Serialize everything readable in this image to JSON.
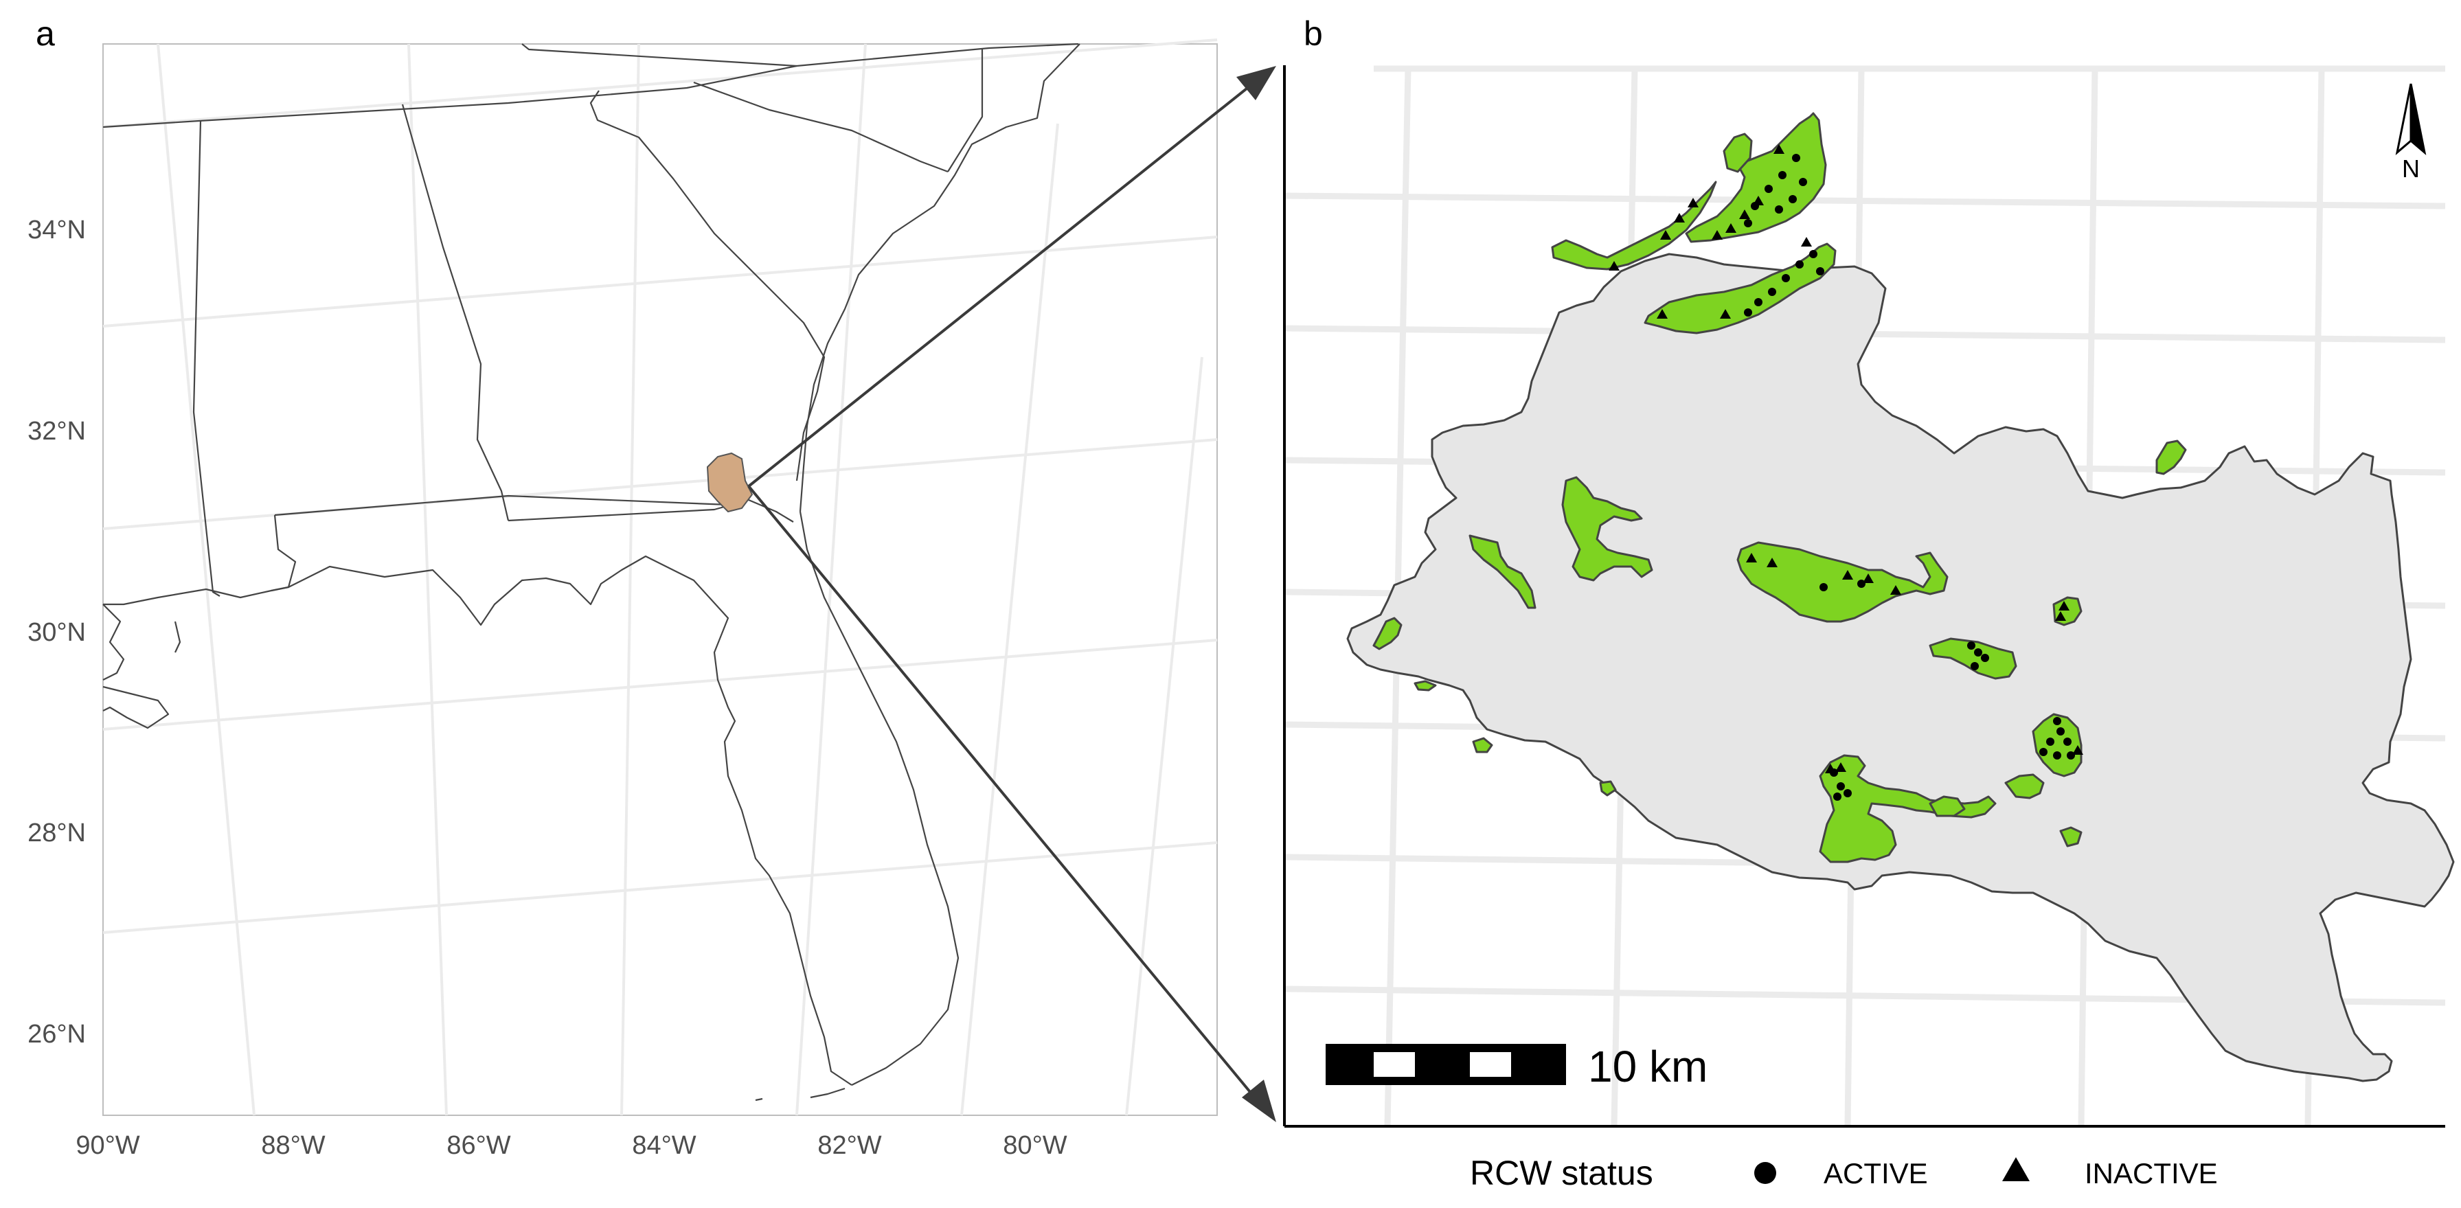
{
  "panel_a": {
    "label": "a",
    "lat_ticks": [
      {
        "value": 34,
        "label": "34°N"
      },
      {
        "value": 32,
        "label": "32°N"
      },
      {
        "value": 30,
        "label": "30°N"
      },
      {
        "value": 28,
        "label": "28°N"
      },
      {
        "value": 26,
        "label": "26°N"
      }
    ],
    "lon_ticks": [
      {
        "value": -90,
        "label": "90°W"
      },
      {
        "value": -88,
        "label": "88°W"
      },
      {
        "value": -86,
        "label": "86°W"
      },
      {
        "value": -84,
        "label": "84°W"
      },
      {
        "value": -82,
        "label": "82°W"
      },
      {
        "value": -80,
        "label": "80°W"
      }
    ],
    "extent_lon": [
      -90,
      -78
    ],
    "extent_lat": [
      25.2,
      35.6
    ],
    "study_area_color": "#d2a882"
  },
  "panel_b": {
    "label": "b",
    "north_label": "N",
    "scale_label": "10 km",
    "land_color": "#e6e6e6",
    "habitat_color": "#7ed321"
  },
  "legend": {
    "title": "RCW status",
    "items": [
      {
        "symbol": "circle",
        "label": "ACTIVE"
      },
      {
        "symbol": "triangle",
        "label": "INACTIVE"
      }
    ]
  }
}
